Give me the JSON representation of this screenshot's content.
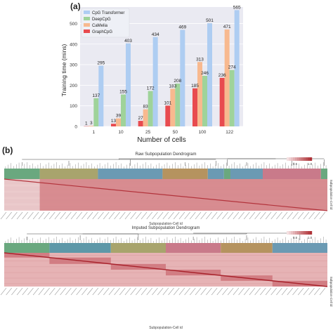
{
  "panel_a_label": "(a)",
  "panel_b_label": "(b)",
  "chart_data": [
    {
      "type": "bar",
      "xlabel": "Number of cells",
      "ylabel": "Training time (mins)",
      "categories": [
        "1",
        "10",
        "25",
        "50",
        "100",
        "122"
      ],
      "ylim": [
        0,
        580
      ],
      "yticks": [
        0,
        100,
        200,
        300,
        400,
        500
      ],
      "grid": true,
      "legend_position": "top-left",
      "series": [
        {
          "name": "CpG Transformer",
          "color": "#aecdf2",
          "values": [
            295,
            403,
            434,
            469,
            501,
            565
          ]
        },
        {
          "name": "DeepCpG",
          "color": "#9fd39a",
          "values": [
            137,
            155,
            172,
            208,
            246,
            274
          ]
        },
        {
          "name": "CaMelia",
          "color": "#f8b98f",
          "values": [
            3,
            39,
            83,
            183,
            313,
            471
          ]
        },
        {
          "name": "GraphCpG",
          "color": "#e84b4f",
          "values": [
            1,
            13,
            27,
            101,
            185,
            236
          ]
        }
      ],
      "data_labels": [
        [
          "295",
          "403",
          "434",
          "469",
          "501",
          "565"
        ],
        [
          "137",
          "155",
          "172",
          "208",
          "246",
          "274"
        ],
        [
          "3",
          "39",
          "83",
          "183",
          "313",
          "471"
        ],
        [
          "1",
          "13",
          "27",
          "101",
          "185",
          "236"
        ]
      ]
    },
    {
      "type": "heatmap",
      "title": "Raw Subpopulation Dendrogram",
      "xlabel": "Subpopulation-Cell id",
      "ylabel": "Subpopulation-Cell id",
      "colorbar_ticks": [
        "0.5",
        "1.0"
      ],
      "colorbar_range": [
        0.5,
        1.0
      ],
      "cluster_colors": [
        "#6aa87f",
        "#a8a46d",
        "#6b9ab3",
        "#b5935f",
        "#6b9ab3",
        "#6aa87f",
        "#6b9ab3",
        "#c97a8a",
        "#6aa87f"
      ],
      "cluster_fractions": [
        0.11,
        0.18,
        0.2,
        0.14,
        0.05,
        0.02,
        0.1,
        0.18,
        0.02
      ]
    },
    {
      "type": "heatmap",
      "title": "Imputed Subpopulation Dendrogram",
      "xlabel": "Subpopulation-Cell id",
      "ylabel": "Subpopulation-Cell id",
      "colorbar_ticks": [
        "0.5",
        "1.0"
      ],
      "colorbar_range": [
        0.5,
        1.0
      ],
      "cluster_colors": [
        "#6aa87f",
        "#5e98a8",
        "#a8a46d",
        "#c97a8a",
        "#b5935f",
        "#6b9ab3"
      ],
      "cluster_fractions": [
        0.14,
        0.19,
        0.17,
        0.17,
        0.16,
        0.17
      ]
    }
  ]
}
